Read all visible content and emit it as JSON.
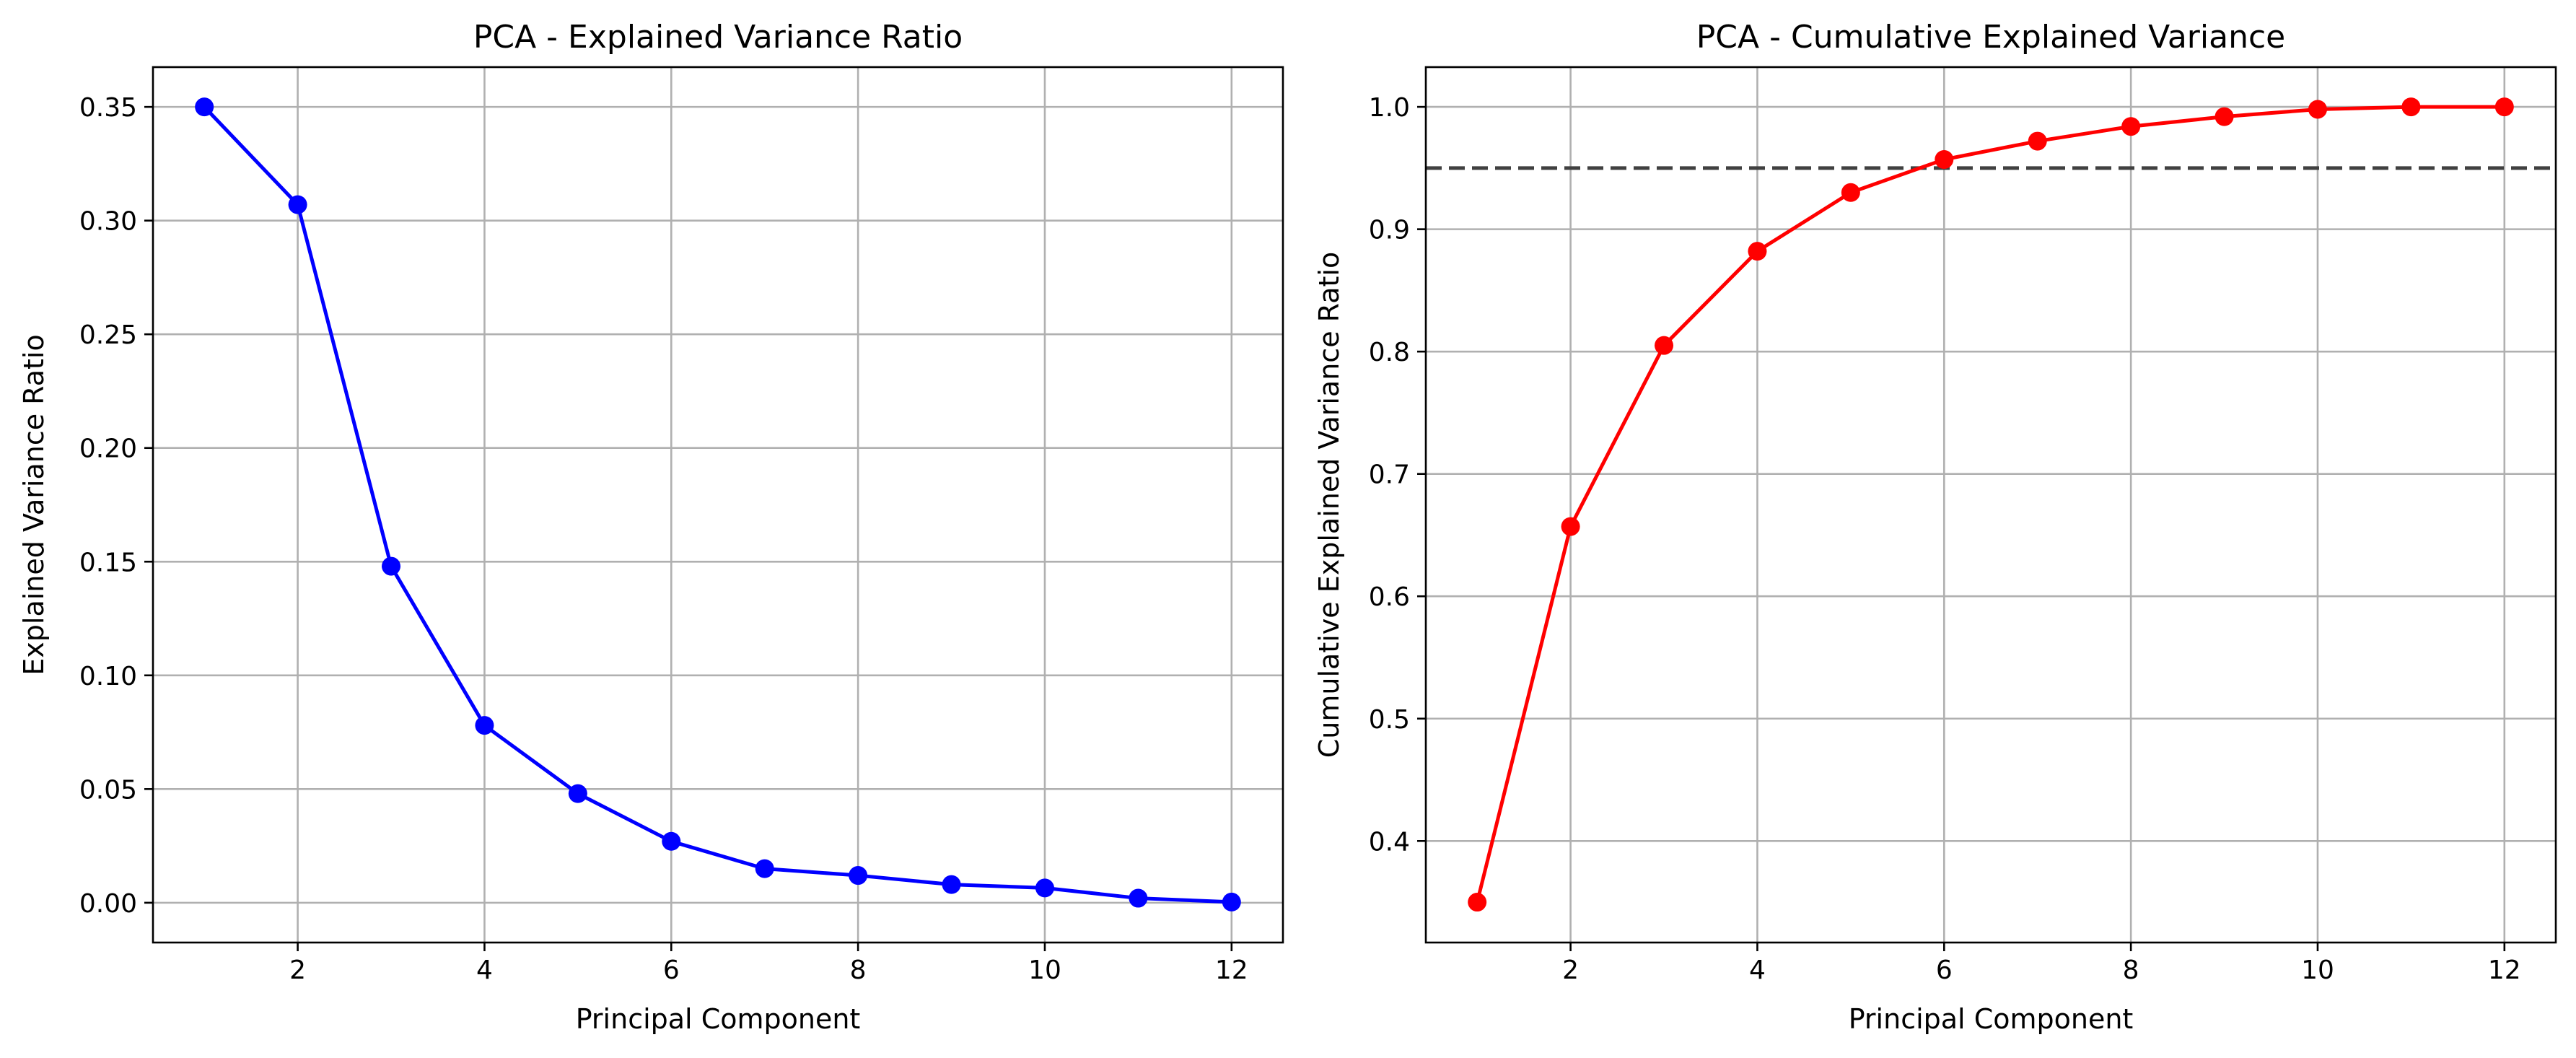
{
  "chart_data": [
    {
      "type": "line",
      "title": "PCA - Explained Variance Ratio",
      "xlabel": "Principal Component",
      "ylabel": "Explained Variance Ratio",
      "xlim": [
        0.45,
        12.55
      ],
      "ylim": [
        -0.0175,
        0.3675
      ],
      "xticks": [
        2,
        4,
        6,
        8,
        10,
        12
      ],
      "yticks": [
        0.0,
        0.05,
        0.1,
        0.15,
        0.2,
        0.25,
        0.3,
        0.35
      ],
      "ytick_labels": [
        "0.00",
        "0.05",
        "0.10",
        "0.15",
        "0.20",
        "0.25",
        "0.30",
        "0.35"
      ],
      "grid": true,
      "series": [
        {
          "color": "#0000ff",
          "marker": "circle",
          "x": [
            1,
            2,
            3,
            4,
            5,
            6,
            7,
            8,
            9,
            10,
            11,
            12
          ],
          "y": [
            0.35,
            0.307,
            0.148,
            0.078,
            0.048,
            0.027,
            0.015,
            0.012,
            0.008,
            0.0065,
            0.002,
            0.0003
          ]
        }
      ]
    },
    {
      "type": "line",
      "title": "PCA - Cumulative Explained Variance",
      "xlabel": "Principal Component",
      "ylabel": "Cumulative Explained Variance Ratio",
      "xlim": [
        0.45,
        12.55
      ],
      "ylim": [
        0.317,
        1.0325
      ],
      "xticks": [
        2,
        4,
        6,
        8,
        10,
        12
      ],
      "yticks": [
        0.4,
        0.5,
        0.6,
        0.7,
        0.8,
        0.9,
        1.0
      ],
      "ytick_labels": [
        "0.4",
        "0.5",
        "0.6",
        "0.7",
        "0.8",
        "0.9",
        "1.0"
      ],
      "grid": true,
      "hline": {
        "y": 0.95,
        "style": "dashed",
        "color": "#404040"
      },
      "series": [
        {
          "color": "#ff0000",
          "marker": "circle",
          "x": [
            1,
            2,
            3,
            4,
            5,
            6,
            7,
            8,
            9,
            10,
            11,
            12
          ],
          "y": [
            0.35,
            0.657,
            0.805,
            0.882,
            0.93,
            0.957,
            0.972,
            0.984,
            0.992,
            0.998,
            1.0,
            1.0
          ]
        }
      ]
    }
  ]
}
